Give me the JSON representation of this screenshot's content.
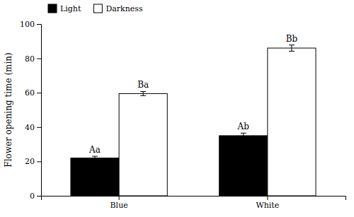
{
  "chart_data": {
    "type": "bar",
    "categories": [
      "Blue",
      "White"
    ],
    "series": [
      {
        "name": "Light",
        "color": "#000000",
        "values": [
          22,
          35
        ],
        "errors": [
          1.0,
          1.5
        ]
      },
      {
        "name": "Darkness",
        "color": "#ffffff",
        "values": [
          59.5,
          86
        ],
        "errors": [
          1.2,
          1.8
        ]
      }
    ],
    "ylabel": "Flower opening time (min)",
    "ylim": [
      0,
      100
    ],
    "yticks": [
      0,
      20,
      40,
      60,
      80,
      100
    ],
    "annotations": [
      {
        "text": "Aa",
        "category": "Blue",
        "series": "Light"
      },
      {
        "text": "Ba",
        "category": "Blue",
        "series": "Darkness"
      },
      {
        "text": "Ab",
        "category": "White",
        "series": "Light"
      },
      {
        "text": "Bb",
        "category": "White",
        "series": "Darkness"
      }
    ],
    "legend": "top"
  }
}
